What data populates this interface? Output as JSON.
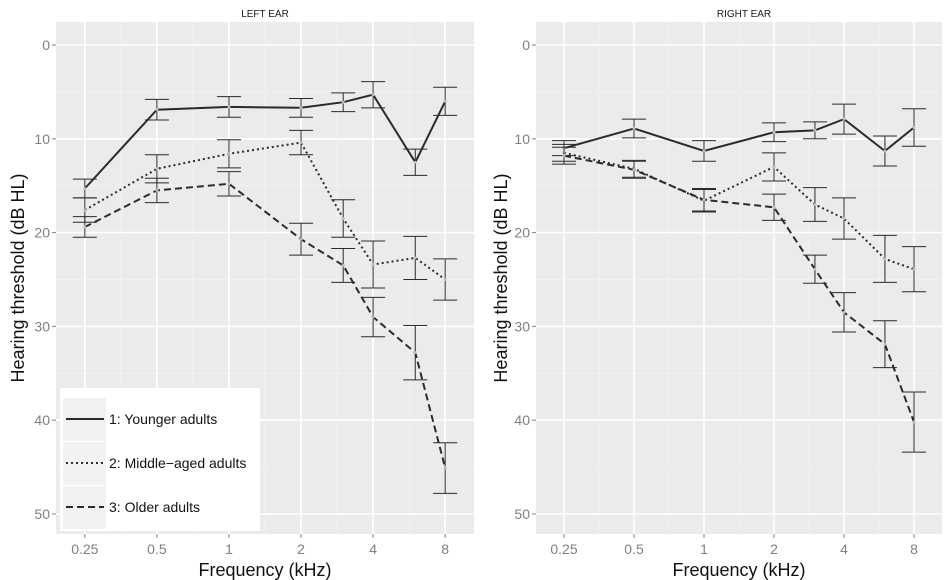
{
  "colors": {
    "panel_bg": "#EBEBEB",
    "grid_major": "#FFFFFF",
    "grid_minor": "#F3F3F3",
    "series": "#2B2B2B",
    "axis_text": "#7F7F7F",
    "legend_bg": "#FFFFFF",
    "legend_key_bg": "#F2F2F2"
  },
  "legend": {
    "position": "bottom-left (inside left panel)",
    "items": [
      {
        "label": "1: Younger adults",
        "line_style": "solid"
      },
      {
        "label": "2: Middle−aged adults",
        "line_style": "dotted"
      },
      {
        "label": "3: Older adults",
        "line_style": "dashed"
      }
    ]
  },
  "chart_data": [
    {
      "type": "line",
      "title": "LEFT EAR",
      "xlabel": "Frequency (kHz)",
      "ylabel": "Hearing threshold (dB HL)",
      "x_scale": "log2",
      "x_tick_labels": [
        "0.25",
        "0.5",
        "1",
        "2",
        "4",
        "8"
      ],
      "y_tick_labels": [
        "0",
        "10",
        "20",
        "30",
        "40",
        "50"
      ],
      "y_reversed": true,
      "ylim": [
        0,
        50
      ],
      "grid": true,
      "x": [
        0.25,
        0.5,
        1,
        2,
        3,
        4,
        6,
        8
      ],
      "series": [
        {
          "name": "1: Younger adults",
          "line_style": "solid",
          "values": [
            15.3,
            6.9,
            6.6,
            6.7,
            6.1,
            5.3,
            12.5,
            6.0
          ],
          "error": [
            1.0,
            1.1,
            1.1,
            1.0,
            1.0,
            1.4,
            1.4,
            1.5
          ]
        },
        {
          "name": "2: Middle−aged adults",
          "line_style": "dotted",
          "values": [
            17.6,
            13.2,
            11.6,
            10.4,
            18.5,
            23.4,
            22.7,
            25.0
          ],
          "error": [
            1.3,
            1.5,
            1.5,
            1.3,
            2.0,
            2.5,
            2.3,
            2.2
          ]
        },
        {
          "name": "3: Older adults",
          "line_style": "dashed",
          "values": [
            19.4,
            15.5,
            14.8,
            20.7,
            23.5,
            29.0,
            32.8,
            45.1
          ],
          "error": [
            1.1,
            1.3,
            1.3,
            1.7,
            1.8,
            2.1,
            2.9,
            2.7
          ]
        }
      ]
    },
    {
      "type": "line",
      "title": "RIGHT EAR",
      "xlabel": "Frequency (kHz)",
      "ylabel": "Hearing threshold (dB HL)",
      "x_scale": "log2",
      "x_tick_labels": [
        "0.25",
        "0.5",
        "1",
        "2",
        "4",
        "8"
      ],
      "y_tick_labels": [
        "0",
        "10",
        "20",
        "30",
        "40",
        "50"
      ],
      "y_reversed": true,
      "ylim": [
        0,
        50
      ],
      "grid": true,
      "x": [
        0.25,
        0.5,
        1,
        2,
        3,
        4,
        6,
        8
      ],
      "series": [
        {
          "name": "1: Younger adults",
          "line_style": "solid",
          "values": [
            11.0,
            8.9,
            11.3,
            9.3,
            9.1,
            7.9,
            11.3,
            8.8
          ],
          "error": [
            0.8,
            1.0,
            1.1,
            1.0,
            0.9,
            1.6,
            1.6,
            2.0
          ]
        },
        {
          "name": "2: Middle−aged adults",
          "line_style": "dotted",
          "values": [
            11.5,
            13.2,
            16.6,
            13.0,
            17.0,
            18.5,
            22.8,
            23.9
          ],
          "error": [
            0.9,
            0.9,
            1.2,
            1.5,
            1.8,
            2.2,
            2.5,
            2.4
          ]
        },
        {
          "name": "3: Older adults",
          "line_style": "dashed",
          "values": [
            11.8,
            13.3,
            16.5,
            17.3,
            23.9,
            28.5,
            31.9,
            40.2
          ],
          "error": [
            0.9,
            0.9,
            1.2,
            1.4,
            1.5,
            2.1,
            2.5,
            3.2
          ]
        }
      ]
    }
  ]
}
